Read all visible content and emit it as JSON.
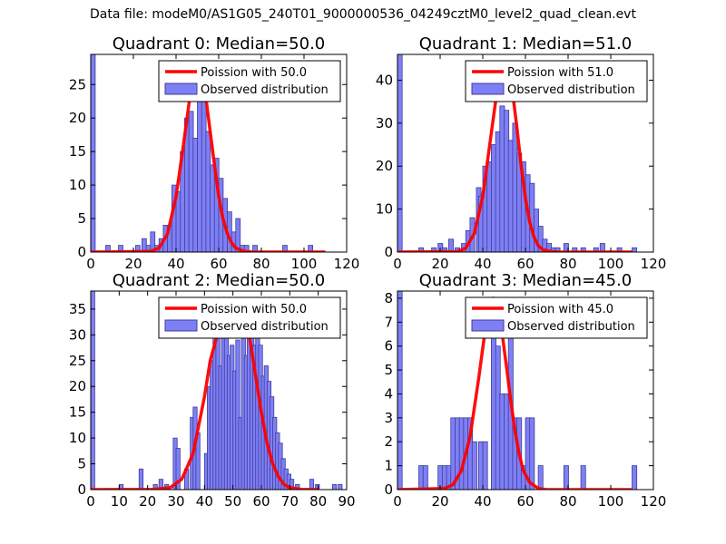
{
  "figure_title": "Data file: modeM0/AS1G05_240T01_9000000536_04249cztM0_level2_quad_clean.evt",
  "colors": {
    "bar_fill": "#7f7ff5",
    "bar_edge": "#3c3c9a",
    "poisson_line": "#ff0000",
    "axes": "#000000"
  },
  "chart_data": [
    {
      "type": "bar",
      "title": "Quadrant 0: Median=50.0",
      "xlim": [
        0,
        120
      ],
      "ylim": [
        0,
        29.5
      ],
      "xticks": [
        0,
        20,
        40,
        60,
        80,
        100,
        120
      ],
      "yticks": [
        0,
        5,
        10,
        15,
        20,
        25
      ],
      "xlabel": "",
      "ylabel": "",
      "legend": {
        "location": "top-right",
        "labels": [
          "Poission with 50.0",
          "Observed distribution"
        ]
      },
      "bin_width": 2.1,
      "observed": [
        [
          0,
          29.5
        ],
        [
          7,
          1
        ],
        [
          13,
          1
        ],
        [
          21,
          1
        ],
        [
          24,
          2
        ],
        [
          26,
          1
        ],
        [
          28,
          3
        ],
        [
          30,
          1
        ],
        [
          32,
          2
        ],
        [
          34,
          4
        ],
        [
          36,
          4
        ],
        [
          38,
          10
        ],
        [
          40,
          9
        ],
        [
          42,
          15
        ],
        [
          44,
          20
        ],
        [
          46,
          21
        ],
        [
          48,
          17
        ],
        [
          50,
          25
        ],
        [
          52,
          24
        ],
        [
          54,
          18
        ],
        [
          56,
          13
        ],
        [
          58,
          14
        ],
        [
          60,
          11
        ],
        [
          62,
          8
        ],
        [
          64,
          6
        ],
        [
          66,
          3
        ],
        [
          68,
          5
        ],
        [
          70,
          1
        ],
        [
          72,
          1
        ],
        [
          76,
          1
        ],
        [
          90,
          1
        ],
        [
          102,
          1
        ]
      ],
      "poisson": {
        "mean": 50.0,
        "points": [
          [
            0,
            0
          ],
          [
            28,
            0.1
          ],
          [
            32,
            0.6
          ],
          [
            36,
            2.7
          ],
          [
            40,
            8.3
          ],
          [
            43,
            15
          ],
          [
            46,
            22
          ],
          [
            48,
            26
          ],
          [
            50,
            28
          ],
          [
            52,
            27
          ],
          [
            54,
            23
          ],
          [
            56,
            18
          ],
          [
            58,
            13
          ],
          [
            60,
            8.3
          ],
          [
            62,
            5
          ],
          [
            64,
            2.8
          ],
          [
            66,
            1.4
          ],
          [
            68,
            0.6
          ],
          [
            72,
            0.1
          ],
          [
            76,
            0
          ],
          [
            110,
            0
          ]
        ]
      }
    },
    {
      "type": "bar",
      "title": "Quadrant 1: Median=51.0",
      "xlim": [
        0,
        120
      ],
      "ylim": [
        0,
        46
      ],
      "xticks": [
        0,
        20,
        40,
        60,
        80,
        100,
        120
      ],
      "yticks": [
        0,
        10,
        20,
        30,
        40
      ],
      "xlabel": "",
      "ylabel": "",
      "legend": {
        "location": "top-right",
        "labels": [
          "Poission with 51.0",
          "Observed distribution"
        ]
      },
      "bin_width": 2.2,
      "observed": [
        [
          0,
          46
        ],
        [
          10,
          1
        ],
        [
          16,
          1
        ],
        [
          19,
          2
        ],
        [
          21,
          1
        ],
        [
          24,
          3
        ],
        [
          27,
          1
        ],
        [
          30,
          2
        ],
        [
          32,
          5
        ],
        [
          34,
          8
        ],
        [
          37,
          15
        ],
        [
          38,
          13
        ],
        [
          40,
          20
        ],
        [
          42,
          21
        ],
        [
          44,
          25
        ],
        [
          46,
          28
        ],
        [
          48,
          34
        ],
        [
          50,
          33
        ],
        [
          52,
          26
        ],
        [
          54,
          30
        ],
        [
          56,
          23
        ],
        [
          58,
          21
        ],
        [
          60,
          18
        ],
        [
          62,
          16
        ],
        [
          64,
          10
        ],
        [
          66,
          6
        ],
        [
          68,
          3
        ],
        [
          70,
          2
        ],
        [
          72,
          1
        ],
        [
          74,
          1
        ],
        [
          78,
          2
        ],
        [
          82,
          1
        ],
        [
          86,
          1
        ],
        [
          92,
          1
        ],
        [
          95,
          2
        ],
        [
          103,
          1
        ],
        [
          110,
          1
        ]
      ],
      "poisson": {
        "mean": 51.0,
        "points": [
          [
            0,
            0
          ],
          [
            28,
            0.1
          ],
          [
            32,
            0.9
          ],
          [
            36,
            4.3
          ],
          [
            40,
            13
          ],
          [
            43,
            24
          ],
          [
            46,
            35
          ],
          [
            48,
            41
          ],
          [
            50,
            44
          ],
          [
            52,
            43
          ],
          [
            54,
            37
          ],
          [
            56,
            29
          ],
          [
            58,
            20
          ],
          [
            60,
            12.5
          ],
          [
            62,
            7
          ],
          [
            64,
            3.5
          ],
          [
            66,
            1.5
          ],
          [
            68,
            0.6
          ],
          [
            72,
            0.1
          ],
          [
            76,
            0
          ],
          [
            110,
            0
          ]
        ]
      }
    },
    {
      "type": "bar",
      "title": "Quadrant 2: Median=50.0",
      "xlim": [
        0,
        90
      ],
      "ylim": [
        0,
        38.5
      ],
      "xticks": [
        0,
        10,
        20,
        30,
        40,
        50,
        60,
        70,
        80,
        90
      ],
      "yticks": [
        0,
        5,
        10,
        15,
        20,
        25,
        30,
        35
      ],
      "xlabel": "",
      "ylabel": "",
      "legend": {
        "location": "top-right",
        "labels": [
          "Poission with 50.0",
          "Observed distribution"
        ]
      },
      "bin_width": 1.4,
      "observed": [
        [
          0,
          38.5
        ],
        [
          10,
          1
        ],
        [
          17,
          4
        ],
        [
          22,
          1
        ],
        [
          24,
          2
        ],
        [
          26,
          1
        ],
        [
          29,
          10
        ],
        [
          30,
          8
        ],
        [
          33,
          4
        ],
        [
          35,
          14
        ],
        [
          36,
          16
        ],
        [
          37,
          11
        ],
        [
          40,
          7
        ],
        [
          41,
          20
        ],
        [
          42,
          25
        ],
        [
          43,
          31
        ],
        [
          44,
          37
        ],
        [
          45,
          24
        ],
        [
          46,
          36
        ],
        [
          47,
          33
        ],
        [
          48,
          26
        ],
        [
          49,
          28
        ],
        [
          50,
          23
        ],
        [
          51,
          29
        ],
        [
          52,
          14
        ],
        [
          53,
          37
        ],
        [
          54,
          26
        ],
        [
          55,
          33
        ],
        [
          56,
          30
        ],
        [
          57,
          28
        ],
        [
          58,
          30
        ],
        [
          59,
          28
        ],
        [
          60,
          22
        ],
        [
          61,
          24
        ],
        [
          62,
          21
        ],
        [
          63,
          18
        ],
        [
          64,
          14
        ],
        [
          65,
          11
        ],
        [
          66,
          9
        ],
        [
          67,
          6
        ],
        [
          68,
          4
        ],
        [
          69,
          3
        ],
        [
          70,
          2
        ],
        [
          72,
          1
        ],
        [
          77,
          2
        ],
        [
          79,
          1
        ],
        [
          85,
          1
        ],
        [
          87,
          1
        ]
      ],
      "poisson": {
        "mean": 50.0,
        "points": [
          [
            0,
            0
          ],
          [
            22,
            0.05
          ],
          [
            28,
            0.4
          ],
          [
            32,
            2
          ],
          [
            36,
            7
          ],
          [
            40,
            18
          ],
          [
            42,
            25
          ],
          [
            44,
            29
          ],
          [
            46,
            33
          ],
          [
            48,
            36
          ],
          [
            50,
            37
          ],
          [
            52,
            36
          ],
          [
            54,
            33
          ],
          [
            56,
            29
          ],
          [
            58,
            22
          ],
          [
            60,
            15
          ],
          [
            62,
            9
          ],
          [
            64,
            5
          ],
          [
            66,
            2.5
          ],
          [
            68,
            1
          ],
          [
            70,
            0.4
          ],
          [
            74,
            0.05
          ],
          [
            80,
            0
          ]
        ]
      }
    },
    {
      "type": "bar",
      "title": "Quadrant 3: Median=45.0",
      "xlim": [
        0,
        120
      ],
      "ylim": [
        0,
        8.3
      ],
      "xticks": [
        0,
        20,
        40,
        60,
        80,
        100,
        120
      ],
      "yticks": [
        0,
        1,
        2,
        3,
        4,
        5,
        6,
        7,
        8
      ],
      "xlabel": "",
      "ylabel": "",
      "legend": {
        "location": "top-right",
        "labels": [
          "Poission with 45.0",
          "Observed distribution"
        ]
      },
      "bin_width": 2.2,
      "observed": [
        [
          0,
          8.3
        ],
        [
          10,
          1
        ],
        [
          12,
          1
        ],
        [
          19,
          1
        ],
        [
          21,
          1
        ],
        [
          23,
          1
        ],
        [
          25,
          3
        ],
        [
          27,
          3
        ],
        [
          29,
          3
        ],
        [
          31,
          3
        ],
        [
          33,
          3
        ],
        [
          35,
          2
        ],
        [
          38,
          2
        ],
        [
          40,
          2
        ],
        [
          44,
          7
        ],
        [
          46,
          6
        ],
        [
          48,
          4
        ],
        [
          50,
          4
        ],
        [
          52,
          7
        ],
        [
          54,
          3
        ],
        [
          56,
          3
        ],
        [
          58,
          1
        ],
        [
          60,
          3
        ],
        [
          62,
          3
        ],
        [
          66,
          1
        ],
        [
          78,
          1
        ],
        [
          86,
          1
        ],
        [
          110,
          1
        ]
      ],
      "poisson": {
        "mean": 45.0,
        "points": [
          [
            0,
            0
          ],
          [
            22,
            0.05
          ],
          [
            26,
            0.2
          ],
          [
            30,
            0.8
          ],
          [
            34,
            2.2
          ],
          [
            38,
            4.6
          ],
          [
            41,
            6.6
          ],
          [
            43,
            7.6
          ],
          [
            45,
            8
          ],
          [
            47,
            7.6
          ],
          [
            49,
            6.6
          ],
          [
            51,
            5.2
          ],
          [
            53,
            3.8
          ],
          [
            55,
            2.5
          ],
          [
            57,
            1.5
          ],
          [
            59,
            0.8
          ],
          [
            62,
            0.3
          ],
          [
            66,
            0.05
          ],
          [
            70,
            0
          ],
          [
            110,
            0
          ]
        ]
      }
    }
  ]
}
